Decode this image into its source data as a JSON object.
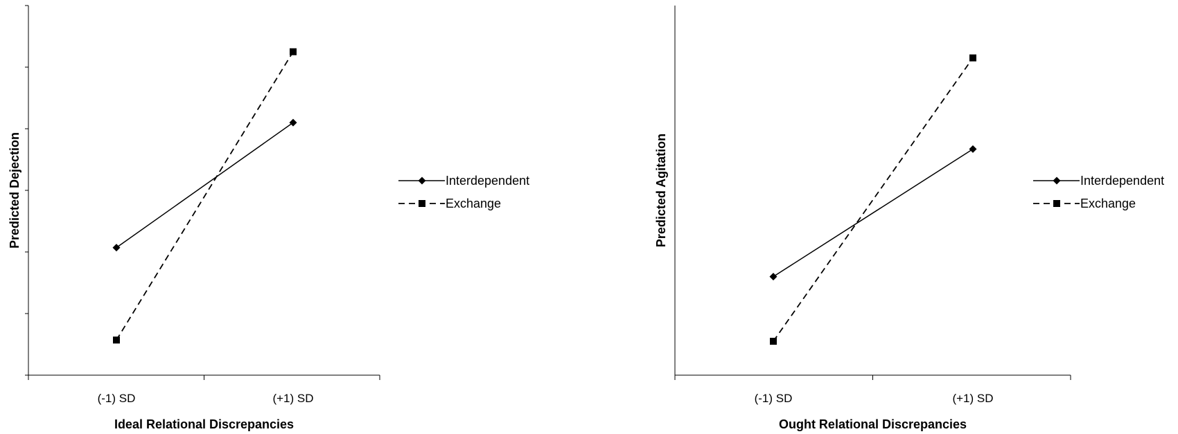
{
  "chart_data": [
    {
      "type": "line",
      "categories": [
        "(-1) SD",
        "(+1) SD"
      ],
      "xlabel": "Ideal Relational Discrepancies",
      "ylabel": "Predicted Dejection",
      "ylim": [
        0,
        6
      ],
      "yticks": 6,
      "series": [
        {
          "name": "Interdependent",
          "values": [
            2.07,
            4.1
          ],
          "style": "solid",
          "marker": "diamond"
        },
        {
          "name": "Exchange",
          "values": [
            0.57,
            5.25
          ],
          "style": "dashed",
          "marker": "square"
        }
      ],
      "legend": "right"
    },
    {
      "type": "line",
      "categories": [
        "(-1) SD",
        "(+1) SD"
      ],
      "xlabel": "Ought Relational Discrepancies",
      "ylabel": "Predicted Agitation",
      "ylim": [
        0,
        6
      ],
      "series": [
        {
          "name": "Interdependent",
          "values": [
            1.6,
            3.67
          ],
          "style": "solid",
          "marker": "diamond"
        },
        {
          "name": "Exchange",
          "values": [
            0.55,
            5.15
          ],
          "style": "dashed",
          "marker": "square"
        }
      ],
      "legend": "right"
    }
  ],
  "colors": {
    "line": "#000000",
    "axis": "#000000"
  }
}
